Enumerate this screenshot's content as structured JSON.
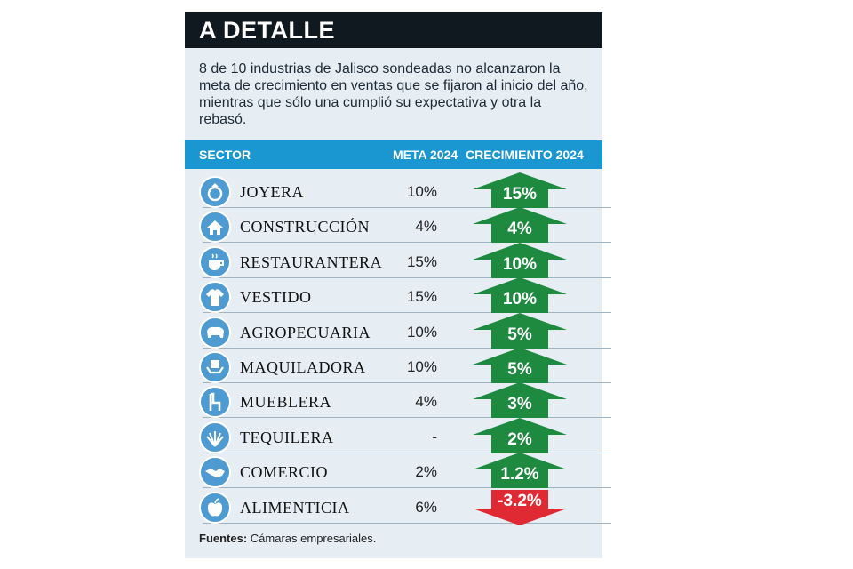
{
  "header": {
    "title": "A DETALLE",
    "intro": "8 de 10 industrias de Jalisco sondeadas no alcanzaron la meta de crecimiento en ventas que se fijaron al inicio del año, mientras que sólo una cumplió su expectativa y otra la rebasó."
  },
  "table": {
    "col_sector": "SECTOR",
    "col_meta": "META 2024",
    "col_growth": "CRECIMIENTO 2024"
  },
  "colors": {
    "up": "#1e8a3f",
    "down": "#e02a33",
    "header": "#1a96d0",
    "title_bar": "#101820"
  },
  "chart_data": {
    "type": "table",
    "title": "A DETALLE",
    "columns": [
      "SECTOR",
      "META 2024",
      "CRECIMIENTO 2024"
    ],
    "rows": [
      {
        "sector": "JOYERA",
        "meta": "10%",
        "growth_label": "15%",
        "growth": 15,
        "direction": "up",
        "icon": "ring-icon"
      },
      {
        "sector": "CONSTRUCCIÓN",
        "meta": "4%",
        "growth_label": "4%",
        "growth": 4,
        "direction": "up",
        "icon": "house-icon"
      },
      {
        "sector": "RESTAURANTERA",
        "meta": "15%",
        "growth_label": "10%",
        "growth": 10,
        "direction": "up",
        "icon": "coffee-cup-icon"
      },
      {
        "sector": "VESTIDO",
        "meta": "15%",
        "growth_label": "10%",
        "growth": 10,
        "direction": "up",
        "icon": "shirt-icon"
      },
      {
        "sector": "AGROPECUARIA",
        "meta": "10%",
        "growth_label": "5%",
        "growth": 5,
        "direction": "up",
        "icon": "cow-icon"
      },
      {
        "sector": "MAQUILADORA",
        "meta": "10%",
        "growth_label": "5%",
        "growth": 5,
        "direction": "up",
        "icon": "box-hands-icon"
      },
      {
        "sector": "MUEBLERA",
        "meta": "4%",
        "growth_label": "3%",
        "growth": 3,
        "direction": "up",
        "icon": "chair-icon"
      },
      {
        "sector": "TEQUILERA",
        "meta": "-",
        "growth_label": "2%",
        "growth": 2,
        "direction": "up",
        "icon": "agave-icon"
      },
      {
        "sector": "COMERCIO",
        "meta": "2%",
        "growth_label": "1.2%",
        "growth": 1.2,
        "direction": "up",
        "icon": "handshake-icon"
      },
      {
        "sector": "ALIMENTICIA",
        "meta": "6%",
        "growth_label": "-3.2%",
        "growth": -3.2,
        "direction": "down",
        "icon": "apple-icon"
      }
    ]
  },
  "footer": {
    "source_label": "Fuentes:",
    "source_text": " Cámaras empresariales."
  }
}
